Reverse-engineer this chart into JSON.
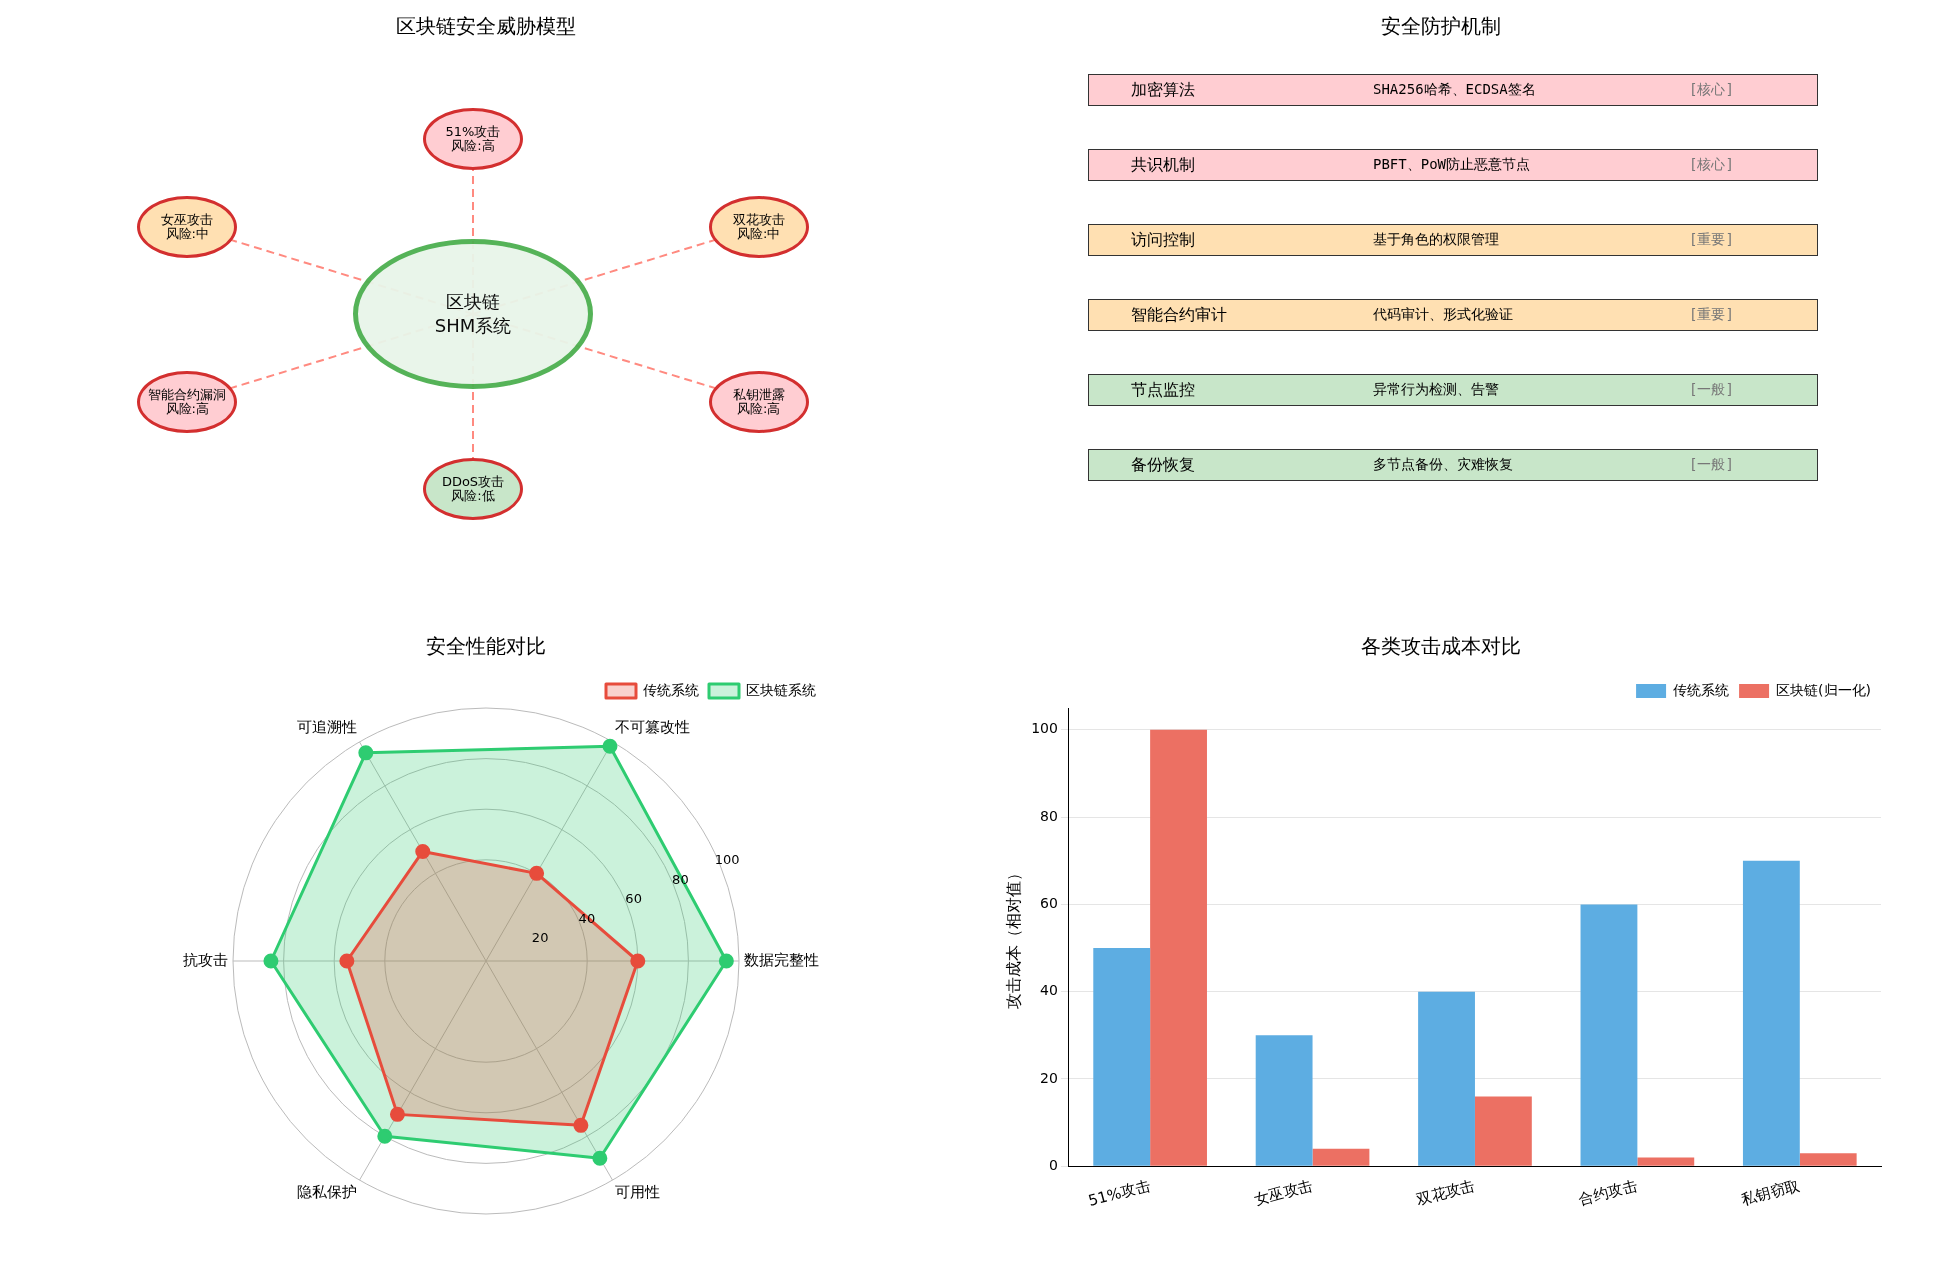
{
  "chart_data": [
    {
      "type": "other",
      "title": "区块链安全威胁模型",
      "annotations": [
        "区块链\nSHM系统",
        "51%攻击",
        "风险:高",
        "双花攻击",
        "风险:中",
        "私钥泄露",
        "风险:高",
        "DDoS攻击",
        "风险:低",
        "智能合约漏洞",
        "风险:高",
        "女巫攻击",
        "风险:中"
      ],
      "colors": [
        "#e8f5e9",
        "#ffcdd2",
        "#ffe0b2",
        "#ffcdd2",
        "#c8e6c9",
        "#ffcdd2",
        "#ffe0b2"
      ]
    },
    {
      "type": "other",
      "title": "安全防护机制",
      "annotations": [
        "加密算法",
        "SHA256哈希、ECDSA签名",
        "[核心]",
        "共识机制",
        "PBFT、PoW防止恶意节点",
        "[核心]",
        "访问控制",
        "基于角色的权限管理",
        "[重要]",
        "智能合约审计",
        "代码审计、形式化验证",
        "[重要]",
        "节点监控",
        "异常行为检测、告警",
        "[一般]",
        "备份恢复",
        "多节点备份、灾难恢复",
        "[一般]"
      ],
      "colors": [
        "#ffcdd2",
        "#ffcdd2",
        "#ffe0b2",
        "#ffe0b2",
        "#c8e6c9",
        "#c8e6c9"
      ]
    },
    {
      "type": "radar",
      "title": "安全性能对比",
      "categories": [
        "不可篡改性",
        "数据完整性",
        "可用性",
        "隐私保护",
        "抗攻击",
        "可追溯性"
      ],
      "ylim": [
        0,
        100
      ],
      "yticks": [
        20,
        40,
        60,
        80,
        100
      ],
      "legend": "top right",
      "marker": "circle",
      "series": [
        {
          "name": "传统系统",
          "color": "#e74c3c",
          "values": [
            40,
            60,
            75,
            70,
            55,
            50
          ]
        },
        {
          "name": "区块链系统",
          "color": "#2ecc71",
          "values": [
            98,
            95,
            90,
            80,
            85,
            95
          ]
        }
      ]
    },
    {
      "type": "bar",
      "title": "各类攻击成本对比",
      "ylabel": "攻击成本（相对值）",
      "categories": [
        "51%攻击",
        "女巫攻击",
        "双花攻击",
        "合约攻击",
        "私钥窃取"
      ],
      "ylim": [
        0,
        105
      ],
      "yticks": [
        0,
        20,
        40,
        60,
        80,
        100
      ],
      "grid": "y",
      "legend": "top right",
      "series": [
        {
          "name": "传统系统",
          "color": "#5dade2",
          "values": [
            50,
            30,
            40,
            60,
            70
          ]
        },
        {
          "name": "区块链(归一化)",
          "color": "#ec7063",
          "values": [
            100,
            4,
            16,
            2,
            3
          ]
        }
      ]
    }
  ]
}
